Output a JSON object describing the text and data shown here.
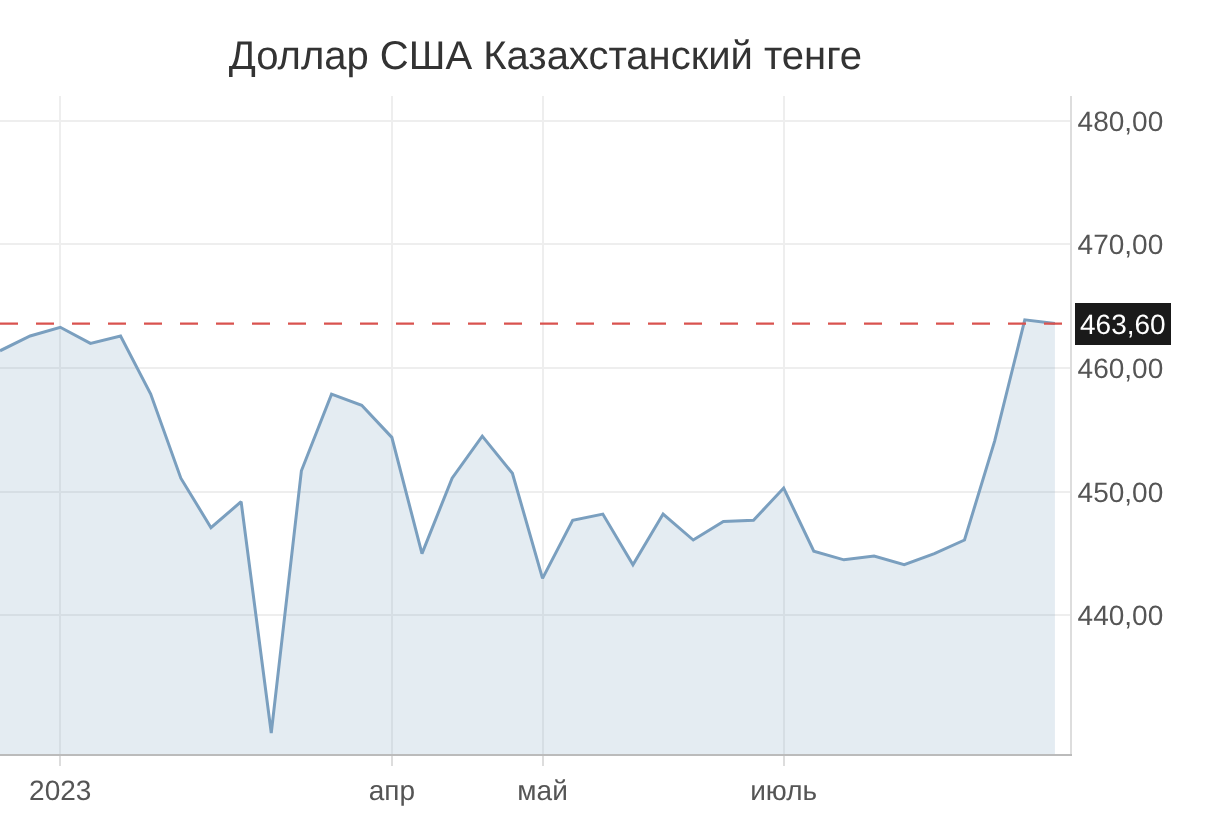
{
  "chart_data": {
    "type": "area",
    "title": "Доллар США Казахстанский тенге",
    "categories": [
      null,
      null,
      "2023",
      null,
      null,
      null,
      null,
      null,
      null,
      null,
      null,
      null,
      null,
      "апр",
      null,
      null,
      null,
      null,
      "май",
      null,
      null,
      null,
      null,
      null,
      null,
      null,
      "июль",
      null,
      null,
      null,
      null,
      null,
      null,
      null,
      null,
      null
    ],
    "series": [
      {
        "color": "#7a9fbf",
        "values": [
          461.4,
          462.6,
          463.3,
          462.0,
          462.6,
          457.9,
          451.1,
          447.1,
          449.2,
          430.5,
          451.7,
          457.9,
          457.0,
          454.4,
          445.0,
          451.1,
          454.5,
          451.5,
          443.0,
          447.7,
          448.2,
          444.1,
          448.2,
          446.1,
          447.6,
          447.7,
          450.3,
          445.2,
          444.5,
          444.8,
          444.1,
          445.0,
          446.1,
          454.1,
          463.9,
          463.6
        ]
      }
    ],
    "ylim": [
      428.8,
      482
    ],
    "yticks": [
      {
        "value": 440,
        "label": "440,00"
      },
      {
        "value": 450,
        "label": "450,00"
      },
      {
        "value": 460,
        "label": "460,00"
      },
      {
        "value": 470,
        "label": "470,00"
      },
      {
        "value": 480,
        "label": "480,00"
      }
    ],
    "ref_lines": [
      {
        "axis": "y",
        "value": 463.6,
        "label": "463,60",
        "color": "#d9534f",
        "line_style": "dashed"
      }
    ],
    "grid": true
  }
}
